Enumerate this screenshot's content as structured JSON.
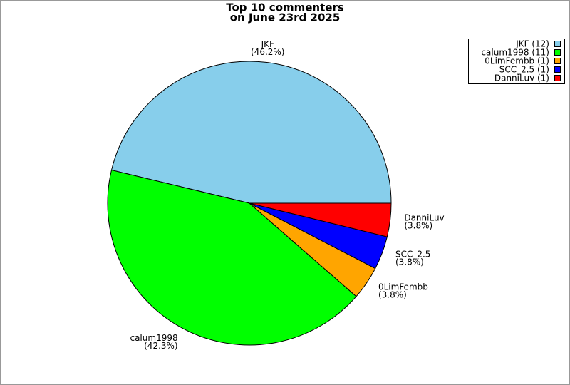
{
  "chart_data": {
    "type": "pie",
    "title": "Top 10 commenters",
    "subtitle": "on June 23rd 2025",
    "categories": [
      "JKF",
      "calum1998",
      "0LimFembb",
      "SCC_2.5",
      "DanniLuv"
    ],
    "values": [
      46.2,
      42.3,
      3.8,
      3.8,
      3.8
    ],
    "value_labels": [
      "(46.2%)",
      "(42.3%)",
      "(3.8%)",
      "(3.8%)",
      "(3.8%)"
    ],
    "legend_labels": [
      "JKF (12)",
      "calum1998 (11)",
      "0LimFembb (1)",
      "SCC_2.5 (1)",
      "DanniLuv (1)"
    ],
    "colors": [
      "#87ceeb",
      "#00ff00",
      "#ffa500",
      "#0000ff",
      "#ff0000"
    ],
    "legend": "upper right"
  }
}
